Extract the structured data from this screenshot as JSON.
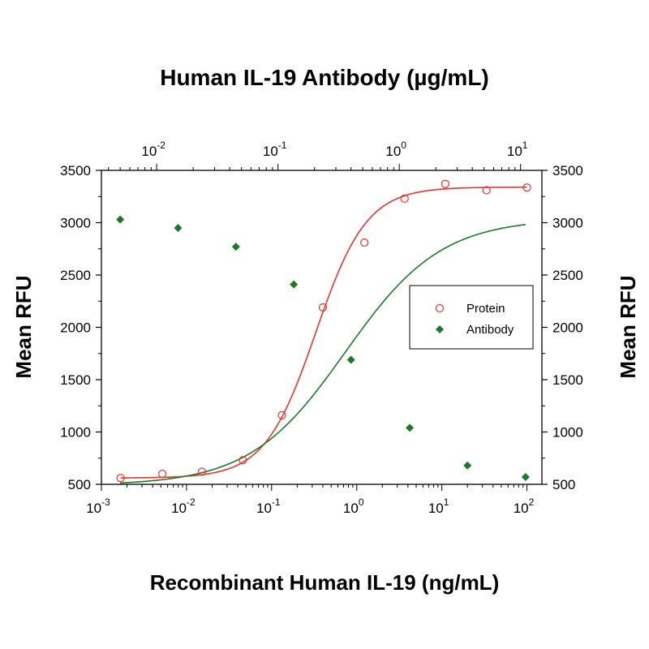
{
  "chart_data": {
    "type": "scatter",
    "title": "Human IL-19 Antibody (µg/mL)",
    "xlabel": "Recombinant Human IL-19 (ng/mL)",
    "ylabel": "Mean RFU",
    "ylabel_right": "Mean RFU",
    "x_scale": "log",
    "xlim": [
      0.001,
      150
    ],
    "x2_scale": "log",
    "x2lim": [
      0.0035,
      15
    ],
    "ylim": [
      500,
      3500
    ],
    "y_ticks": [
      "3500",
      "3000",
      "2500",
      "2000",
      "1500",
      "1000",
      "500"
    ],
    "x_ticks": [
      {
        "base": "10",
        "exp": "-3",
        "value": 0.001
      },
      {
        "base": "10",
        "exp": "-2",
        "value": 0.01
      },
      {
        "base": "10",
        "exp": "-1",
        "value": 0.1
      },
      {
        "base": "10",
        "exp": "0",
        "value": 1
      },
      {
        "base": "10",
        "exp": "1",
        "value": 10
      },
      {
        "base": "10",
        "exp": "2",
        "value": 100
      }
    ],
    "x2_ticks": [
      {
        "base": "10",
        "exp": "-2",
        "value": 0.01
      },
      {
        "base": "10",
        "exp": "-1",
        "value": 0.1
      },
      {
        "base": "10",
        "exp": "0",
        "value": 1
      },
      {
        "base": "10",
        "exp": "1",
        "value": 10
      }
    ],
    "grid": false,
    "legend_position": "center-right",
    "series": [
      {
        "name": "Protein",
        "marker": "open-circle",
        "color": "#e8342c",
        "axis": "bottom",
        "points": [
          {
            "x": 0.00168,
            "y": 560
          },
          {
            "x": 0.0052,
            "y": 600
          },
          {
            "x": 0.0152,
            "y": 620
          },
          {
            "x": 0.046,
            "y": 730
          },
          {
            "x": 0.132,
            "y": 1160
          },
          {
            "x": 0.4,
            "y": 2190
          },
          {
            "x": 1.23,
            "y": 2810
          },
          {
            "x": 3.65,
            "y": 3230
          },
          {
            "x": 11.0,
            "y": 3370
          },
          {
            "x": 33.5,
            "y": 3310
          },
          {
            "x": 100,
            "y": 3335
          }
        ],
        "fit": {
          "bottom": 560,
          "top": 3340,
          "ec50": 0.33,
          "hill": 1.45
        }
      },
      {
        "name": "Antibody",
        "marker": "filled-diamond",
        "color": "#1a7a2a",
        "axis": "top",
        "points": [
          {
            "x": 0.005,
            "y": 3030
          },
          {
            "x": 0.015,
            "y": 2950
          },
          {
            "x": 0.045,
            "y": 2770
          },
          {
            "x": 0.135,
            "y": 2410
          },
          {
            "x": 0.4,
            "y": 1690
          },
          {
            "x": 1.22,
            "y": 1040
          },
          {
            "x": 3.65,
            "y": 680
          },
          {
            "x": 11.0,
            "y": 570
          }
        ],
        "fit": {
          "bottom": 490,
          "top": 3040,
          "ec50": 0.36,
          "hill": 1.1
        }
      }
    ]
  }
}
